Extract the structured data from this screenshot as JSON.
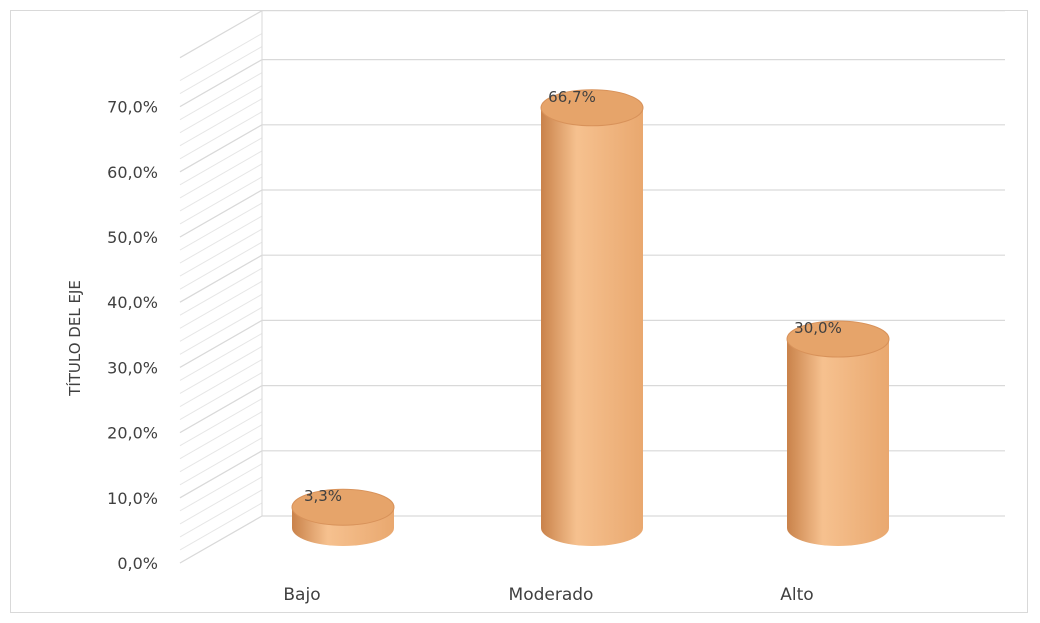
{
  "chart_data": {
    "type": "bar",
    "style": "3d-cylinder",
    "categories": [
      "Bajo",
      "Moderado",
      "Alto"
    ],
    "values": [
      3.3,
      66.7,
      30.0
    ],
    "data_labels": [
      "3,3%",
      "66,7%",
      "30,0%"
    ],
    "ylabel": "TÍTULO DEL EJE",
    "ylim": [
      0,
      70
    ],
    "yticks": [
      0,
      10,
      20,
      30,
      40,
      50,
      60,
      70
    ],
    "ytick_labels": [
      "0,0%",
      "10,0%",
      "20,0%",
      "30,0%",
      "40,0%",
      "50,0%",
      "60,0%",
      "70,0%"
    ],
    "grid": true,
    "legend": "none",
    "colors": {
      "bar_light": "#f6c18f",
      "bar_mid": "#e9a86f",
      "bar_dark": "#c9824a",
      "bar_top": "#e6a46a",
      "grid": "#d9d9d9",
      "text": "#404040"
    }
  }
}
